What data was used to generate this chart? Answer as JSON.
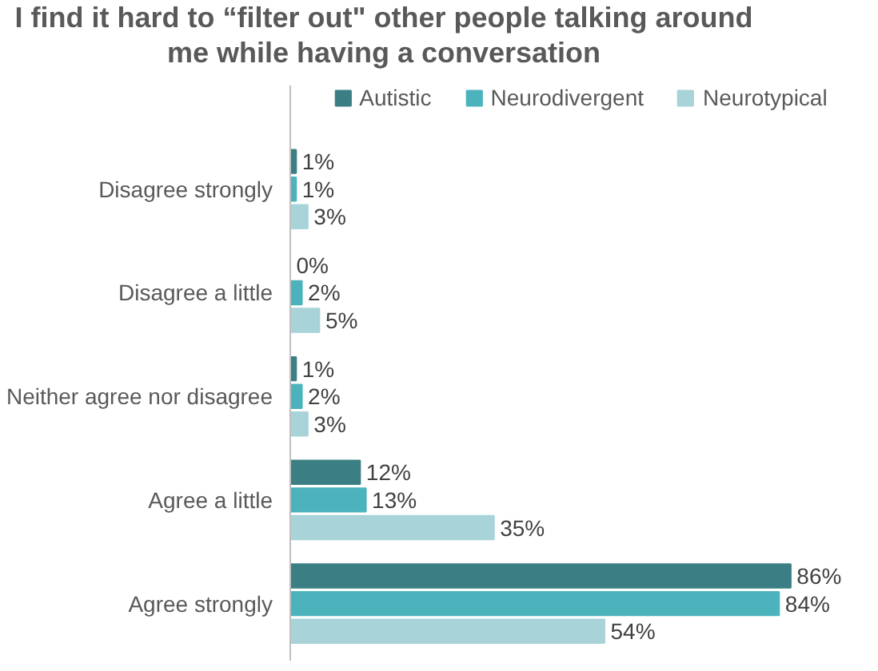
{
  "chart_data": {
    "type": "bar",
    "orientation": "horizontal",
    "title": "I find it hard to “filter out\" other people talking around me while having a conversation",
    "categories": [
      "Disagree strongly",
      "Disagree a little",
      "Neither agree nor disagree",
      "Agree a little",
      "Agree strongly"
    ],
    "series": [
      {
        "name": "Autistic",
        "color": "#3b7f84",
        "values": [
          1,
          0,
          1,
          12,
          86
        ],
        "value_labels": [
          "1%",
          "0%",
          "1%",
          "12%",
          "86%"
        ]
      },
      {
        "name": "Neurodivergent",
        "color": "#4cb3bc",
        "values": [
          1,
          2,
          2,
          13,
          84
        ],
        "value_labels": [
          "1%",
          "2%",
          "2%",
          "13%",
          "84%"
        ]
      },
      {
        "name": "Neurotypical",
        "color": "#a7d3d9",
        "values": [
          3,
          5,
          3,
          35,
          54
        ],
        "value_labels": [
          "3%",
          "5%",
          "3%",
          "35%",
          "54%"
        ]
      }
    ],
    "legend": "top",
    "grid": false
  }
}
